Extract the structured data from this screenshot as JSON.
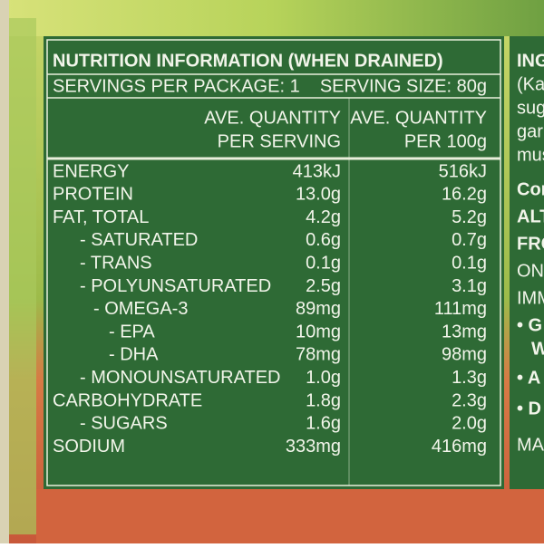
{
  "label": {
    "title": "NUTRITION INFORMATION (WHEN DRAINED)",
    "servings_per_package": "SERVINGS PER PACKAGE: 1",
    "serving_size": "SERVING SIZE: 80g",
    "table": {
      "headers": [
        [
          "AVE. QUANTITY",
          "PER SERVING"
        ],
        [
          "AVE. QUANTITY",
          "PER 100g"
        ]
      ],
      "rows": [
        [
          "ENERGY",
          "413kJ",
          "516kJ"
        ],
        [
          "PROTEIN",
          "13.0g",
          "16.2g"
        ],
        [
          "FAT, TOTAL",
          "4.2g",
          "5.2g"
        ],
        [
          "- SATURATED",
          "0.6g",
          "0.7g"
        ],
        [
          "- TRANS",
          "0.1g",
          "0.1g"
        ],
        [
          "- POLYUNSATURATED",
          "2.5g",
          "3.1g"
        ],
        [
          "- OMEGA-3",
          "89mg",
          "111mg"
        ],
        [
          "- EPA",
          "10mg",
          "13mg"
        ],
        [
          "- DHA",
          "78mg",
          "98mg"
        ],
        [
          "- MONOUNSATURATED",
          "1.0g",
          "1.3g"
        ],
        [
          "CARBOHYDRATE",
          "1.8g",
          "2.3g"
        ],
        [
          "- SUGARS",
          "1.6g",
          "2.0g"
        ],
        [
          "SODIUM",
          "333mg",
          "416mg"
        ]
      ]
    }
  },
  "side_panel": {
    "fragments": [
      "ING",
      "(Kat",
      "sug",
      "garl",
      "mus",
      "Con",
      "ALT",
      "FRO",
      "ONG",
      "IMM",
      "• G",
      "W",
      "• A",
      "• D",
      "MA"
    ]
  }
}
